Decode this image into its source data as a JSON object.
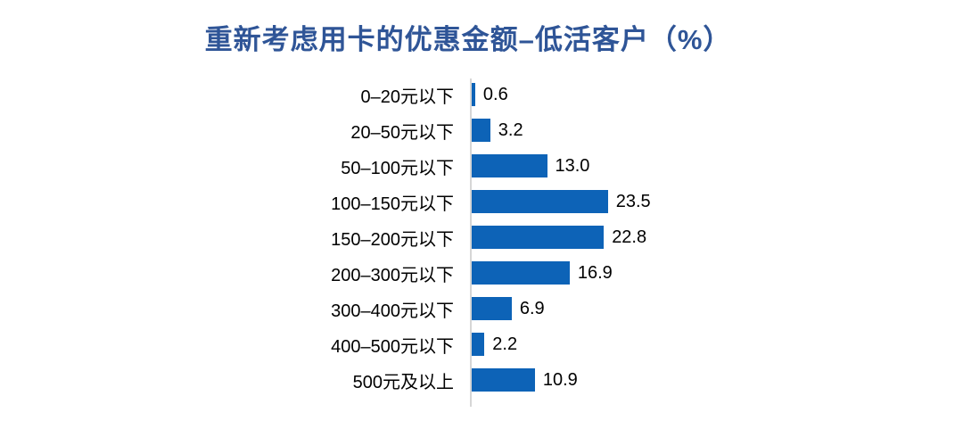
{
  "chart_data": {
    "type": "bar",
    "orientation": "horizontal",
    "title": "重新考虑用卡的优惠金额–低活客户（%）",
    "categories": [
      "0–20元以下",
      "20–50元以下",
      "50–100元以下",
      "100–150元以下",
      "150–200元以下",
      "200–300元以下",
      "300–400元以下",
      "400–500元以下",
      "500元及以上"
    ],
    "values": [
      0.6,
      3.2,
      13.0,
      23.5,
      22.8,
      16.9,
      6.9,
      2.2,
      10.9
    ],
    "value_labels": [
      "0.6",
      "3.2",
      "13.0",
      "23.5",
      "22.8",
      "16.9",
      "6.9",
      "2.2",
      "10.9"
    ],
    "xlabel": "",
    "ylabel": "",
    "xlim": [
      0,
      25
    ],
    "grid": false,
    "legend": false,
    "colors": {
      "bar": "#0D63B7",
      "title": "#2F5597",
      "axis_line": "#D6D6D6",
      "text": "#000000",
      "background": "#FFFFFF"
    }
  }
}
